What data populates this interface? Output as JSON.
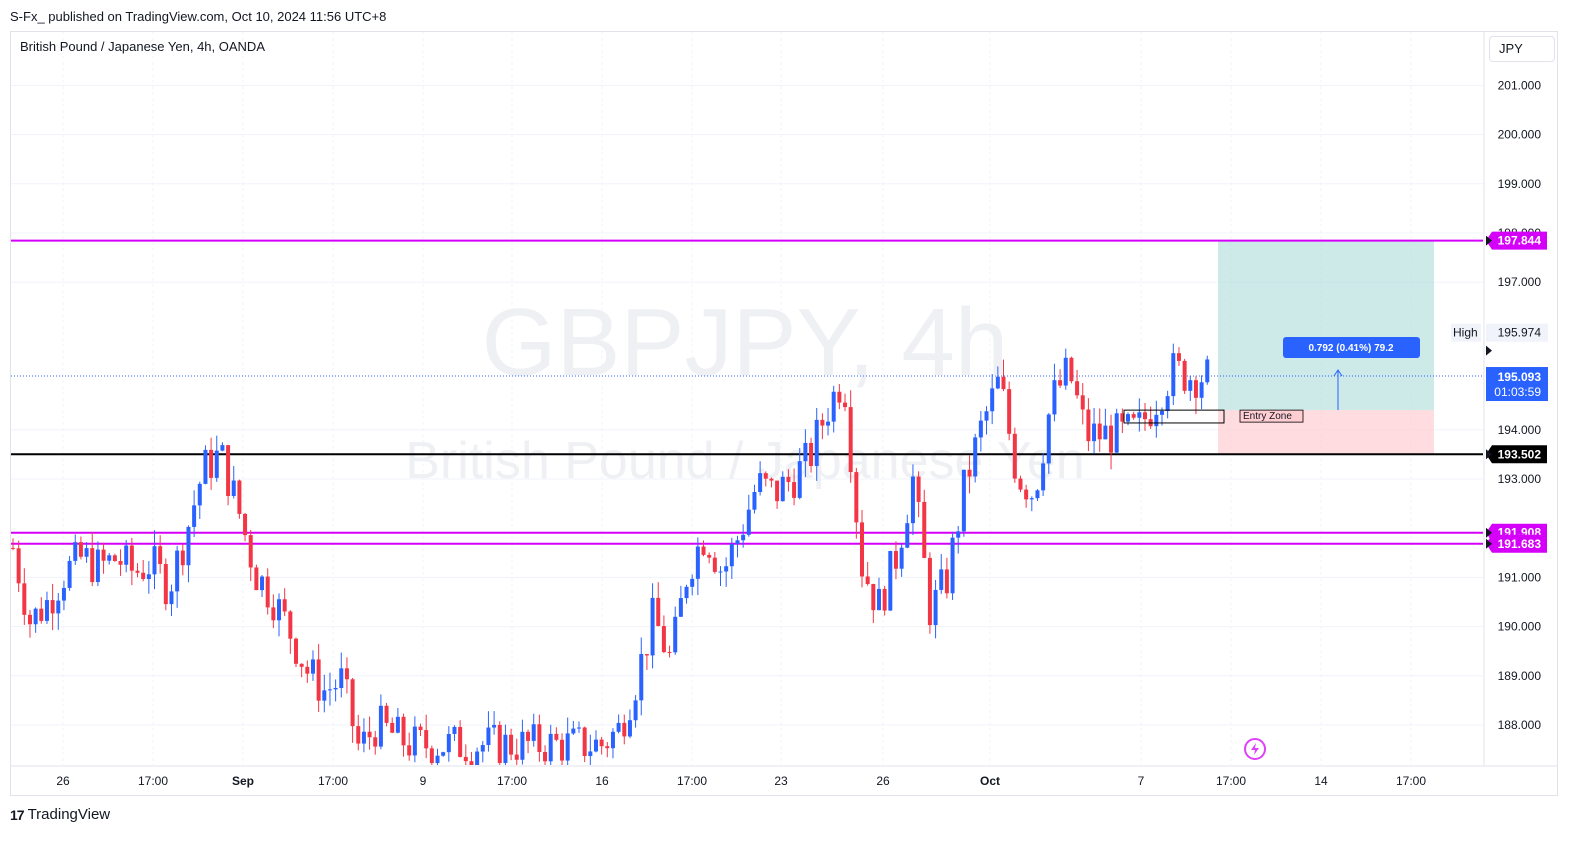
{
  "header": {
    "publish_text": "S-Fx_ published on TradingView.com, Oct 10, 2024 11:56 UTC+8",
    "symbol_title": "British Pound / Japanese Yen, 4h, OANDA",
    "currency": "JPY"
  },
  "watermark": {
    "symbol": "GBPJPY, 4h",
    "name": "British Pound / Japanese Yen"
  },
  "footer": {
    "logo_text": "TradingView"
  },
  "colors": {
    "up": "#2962ff",
    "down": "#f23645",
    "magenta": "#d500f9",
    "black": "#000000",
    "target_zone": "#b2dfdb",
    "stop_zone": "#ffcdd2",
    "price_tag": "#2962ff"
  },
  "chart_data": {
    "type": "candlestick",
    "symbol": "GBPJPY",
    "interval": "4h",
    "ylim": [
      187.2,
      202.5
    ],
    "y_ticks": [
      "201.000",
      "200.000",
      "199.000",
      "198.000",
      "197.000",
      "194.000",
      "193.000",
      "191.000",
      "190.000",
      "189.000",
      "188.000"
    ],
    "x_ticks": [
      "26",
      "17:00",
      "Sep",
      "17:00",
      "9",
      "17:00",
      "16",
      "17:00",
      "23",
      "26",
      "Oct",
      "7",
      "17:00",
      "14",
      "17:00"
    ],
    "bold_x_ticks": [
      "Sep",
      "Oct"
    ],
    "horizontal_lines": [
      {
        "price": 197.844,
        "label": "197.844",
        "color": "magenta"
      },
      {
        "price": 193.502,
        "label": "193.502",
        "color": "black"
      },
      {
        "price": 191.908,
        "label": "191.908",
        "color": "magenta"
      },
      {
        "price": 191.683,
        "label": "191.683",
        "color": "magenta"
      }
    ],
    "current_price": {
      "price": 195.093,
      "label": "195.093",
      "countdown": "01:03:59"
    },
    "high_marker": {
      "label": "High",
      "price": 195.974,
      "value_label": "195.974"
    },
    "position": {
      "entry_top": 194.4,
      "entry_bottom": 194.2,
      "stop": 193.502,
      "target": 197.844,
      "entry_label": "Entry Zone",
      "measure_label": "0.792 (0.41%) 79.2"
    },
    "anchors": [
      {
        "x": "26",
        "y": [
          191.6,
          190.1,
          190.5,
          191.1,
          191.4
        ]
      },
      {
        "x": "17:00",
        "y": [
          191.2,
          191.4,
          191.1,
          191.3,
          190.8
        ]
      },
      {
        "x": "Sep",
        "y": [
          191.9,
          193.2,
          193.5,
          192.4,
          191.1
        ]
      },
      {
        "x": "17:00",
        "y": [
          190.6,
          189.9,
          189.1,
          188.7,
          188.9
        ]
      },
      {
        "x": "9",
        "y": [
          187.5,
          188.0,
          187.8,
          187.6,
          187.6
        ]
      },
      {
        "x": "17:00",
        "y": [
          187.6,
          187.6,
          187.6,
          187.6,
          187.6
        ]
      },
      {
        "x": "16",
        "y": [
          187.6,
          187.6,
          187.6,
          187.6,
          187.6
        ]
      },
      {
        "x": "17:00",
        "y": [
          187.9,
          188.9,
          190.2,
          189.3,
          191.2
        ]
      },
      {
        "x": "23",
        "y": [
          191.9,
          191.1,
          191.9,
          192.9,
          192.7
        ]
      },
      {
        "x": "26",
        "y": [
          193.0,
          193.4,
          194.4,
          195.1,
          191.3
        ]
      },
      {
        "x": "Oct",
        "y": [
          190.4,
          191.4,
          193.0,
          190.3,
          191.0
        ]
      },
      {
        "x": "Oct",
        "y": [
          192.9,
          194.1,
          195.0,
          193.1,
          192.7
        ]
      },
      {
        "x": "7",
        "y": [
          194.6,
          195.2,
          193.9,
          193.9,
          193.9
        ]
      },
      {
        "x": "17:00",
        "y": [
          194.0,
          194.6,
          195.2,
          195.1,
          195.093
        ]
      }
    ]
  }
}
